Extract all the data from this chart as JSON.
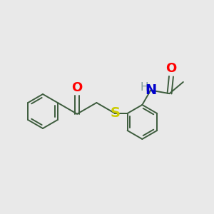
{
  "background_color": "#e9e9e9",
  "bond_color": "#3d5c3d",
  "O_color": "#ff0000",
  "N_color": "#0000cc",
  "S_color": "#cccc00",
  "H_color": "#7a9a9a",
  "bond_width": 1.4,
  "font_size_atom": 13,
  "font_size_h": 11,
  "figsize": [
    3.0,
    3.0
  ],
  "dpi": 100,
  "xlim": [
    0,
    10
  ],
  "ylim": [
    0,
    10
  ]
}
